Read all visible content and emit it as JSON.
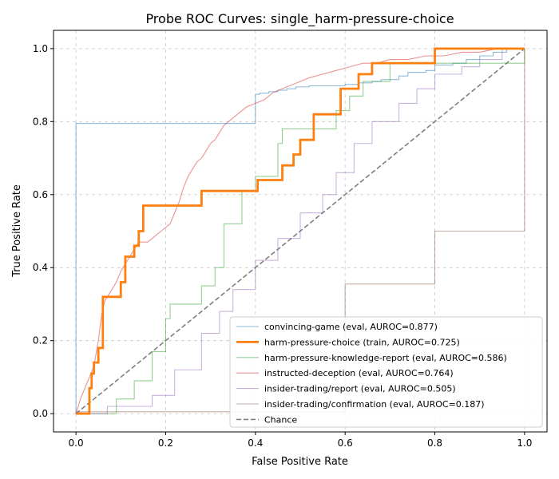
{
  "chart_data": {
    "type": "line",
    "title": "Probe ROC Curves: single_harm-pressure-choice",
    "xlabel": "False Positive Rate",
    "ylabel": "True Positive Rate",
    "xlim": [
      -0.05,
      1.05
    ],
    "ylim": [
      -0.05,
      1.05
    ],
    "xticks": [
      0.0,
      0.2,
      0.4,
      0.6,
      0.8,
      1.0
    ],
    "yticks": [
      0.0,
      0.2,
      0.4,
      0.6,
      0.8,
      1.0
    ],
    "xtick_labels": [
      "0.0",
      "0.2",
      "0.4",
      "0.6",
      "0.8",
      "1.0"
    ],
    "ytick_labels": [
      "0.0",
      "0.2",
      "0.4",
      "0.6",
      "0.8",
      "1.0"
    ],
    "grid": true,
    "legend_position": "lower-right",
    "series": [
      {
        "name": "convincing-game (eval, AUROC=0.877)",
        "color": "#1f77b4",
        "bold": false,
        "x": [
          0,
          0,
          0.4,
          0.4,
          0.41,
          0.41,
          0.43,
          0.43,
          0.45,
          0.45,
          0.47,
          0.47,
          0.49,
          0.49,
          0.52,
          0.52,
          0.6,
          0.6,
          0.63,
          0.63,
          0.66,
          0.66,
          0.68,
          0.68,
          0.72,
          0.72,
          0.74,
          0.74,
          0.78,
          0.78,
          0.8,
          0.8,
          0.84,
          0.84,
          0.87,
          0.87,
          0.9,
          0.9,
          0.93,
          0.93,
          0.96,
          0.96,
          1.0
        ],
        "y": [
          0,
          0.795,
          0.795,
          0.875,
          0.875,
          0.878,
          0.878,
          0.882,
          0.882,
          0.886,
          0.886,
          0.89,
          0.89,
          0.895,
          0.895,
          0.898,
          0.898,
          0.902,
          0.902,
          0.906,
          0.906,
          0.91,
          0.91,
          0.915,
          0.915,
          0.925,
          0.925,
          0.935,
          0.935,
          0.94,
          0.94,
          0.955,
          0.955,
          0.96,
          0.96,
          0.97,
          0.97,
          0.98,
          0.98,
          0.99,
          0.99,
          1.0,
          1.0
        ]
      },
      {
        "name": "harm-pressure-choice (train, AUROC=0.725)",
        "color": "#ff7f0e",
        "bold": true,
        "x": [
          0,
          0.03,
          0.03,
          0.035,
          0.035,
          0.04,
          0.04,
          0.05,
          0.05,
          0.06,
          0.06,
          0.1,
          0.1,
          0.11,
          0.11,
          0.13,
          0.13,
          0.14,
          0.14,
          0.15,
          0.15,
          0.28,
          0.28,
          0.405,
          0.405,
          0.46,
          0.46,
          0.485,
          0.485,
          0.5,
          0.5,
          0.53,
          0.53,
          0.59,
          0.59,
          0.63,
          0.63,
          0.66,
          0.66,
          0.8,
          0.8,
          1.0
        ],
        "y": [
          0,
          0,
          0.07,
          0.07,
          0.11,
          0.11,
          0.14,
          0.14,
          0.18,
          0.18,
          0.32,
          0.32,
          0.36,
          0.36,
          0.43,
          0.43,
          0.46,
          0.46,
          0.5,
          0.5,
          0.57,
          0.57,
          0.61,
          0.61,
          0.64,
          0.64,
          0.68,
          0.68,
          0.71,
          0.71,
          0.75,
          0.75,
          0.82,
          0.82,
          0.89,
          0.89,
          0.93,
          0.93,
          0.96,
          0.96,
          1.0,
          1.0
        ]
      },
      {
        "name": "harm-pressure-knowledge-report (eval, AUROC=0.586)",
        "color": "#2ca02c",
        "bold": false,
        "x": [
          0,
          0.09,
          0.09,
          0.13,
          0.13,
          0.17,
          0.17,
          0.2,
          0.2,
          0.21,
          0.21,
          0.28,
          0.28,
          0.31,
          0.31,
          0.33,
          0.33,
          0.37,
          0.37,
          0.4,
          0.4,
          0.45,
          0.45,
          0.46,
          0.46,
          0.58,
          0.58,
          0.61,
          0.61,
          0.64,
          0.64,
          0.66,
          0.66,
          0.7,
          0.7,
          0.8,
          0.8,
          0.82,
          0.82,
          0.93,
          0.93,
          1.0,
          1.0
        ],
        "y": [
          0,
          0,
          0.04,
          0.04,
          0.09,
          0.09,
          0.17,
          0.17,
          0.26,
          0.26,
          0.3,
          0.3,
          0.35,
          0.35,
          0.4,
          0.4,
          0.52,
          0.52,
          0.61,
          0.61,
          0.65,
          0.65,
          0.74,
          0.74,
          0.78,
          0.78,
          0.83,
          0.83,
          0.87,
          0.87,
          0.91,
          0.91,
          0.91,
          0.91,
          0.96,
          0.96,
          0.96,
          0.96,
          0.96,
          0.96,
          0.96,
          0.96,
          1.0
        ]
      },
      {
        "name": "instructed-deception (eval, AUROC=0.764)",
        "color": "#d62728",
        "bold": false,
        "x": [
          0,
          0.005,
          0.01,
          0.02,
          0.03,
          0.04,
          0.05,
          0.055,
          0.06,
          0.065,
          0.07,
          0.08,
          0.09,
          0.1,
          0.11,
          0.12,
          0.13,
          0.14,
          0.15,
          0.16,
          0.17,
          0.18,
          0.19,
          0.2,
          0.21,
          0.22,
          0.23,
          0.24,
          0.25,
          0.26,
          0.27,
          0.28,
          0.29,
          0.3,
          0.31,
          0.32,
          0.33,
          0.34,
          0.36,
          0.38,
          0.4,
          0.42,
          0.44,
          0.46,
          0.48,
          0.5,
          0.52,
          0.55,
          0.58,
          0.61,
          0.64,
          0.67,
          0.7,
          0.74,
          0.78,
          0.82,
          0.86,
          0.9,
          0.94,
          0.98,
          1.0
        ],
        "y": [
          0,
          0.02,
          0.04,
          0.07,
          0.1,
          0.13,
          0.2,
          0.25,
          0.29,
          0.31,
          0.32,
          0.34,
          0.36,
          0.39,
          0.41,
          0.43,
          0.45,
          0.47,
          0.47,
          0.47,
          0.48,
          0.49,
          0.5,
          0.51,
          0.52,
          0.55,
          0.58,
          0.62,
          0.65,
          0.67,
          0.69,
          0.7,
          0.72,
          0.74,
          0.75,
          0.77,
          0.79,
          0.8,
          0.82,
          0.84,
          0.85,
          0.86,
          0.88,
          0.89,
          0.9,
          0.91,
          0.92,
          0.93,
          0.94,
          0.95,
          0.96,
          0.96,
          0.97,
          0.97,
          0.98,
          0.98,
          0.99,
          0.99,
          1.0,
          1.0,
          1.0
        ]
      },
      {
        "name": "insider-trading/report (eval, AUROC=0.505)",
        "color": "#9467bd",
        "bold": false,
        "x": [
          0,
          0.07,
          0.07,
          0.17,
          0.17,
          0.22,
          0.22,
          0.28,
          0.28,
          0.32,
          0.32,
          0.35,
          0.35,
          0.4,
          0.4,
          0.45,
          0.45,
          0.5,
          0.5,
          0.55,
          0.55,
          0.58,
          0.58,
          0.62,
          0.62,
          0.66,
          0.66,
          0.72,
          0.72,
          0.76,
          0.76,
          0.8,
          0.8,
          0.86,
          0.86,
          0.9,
          0.9,
          0.95,
          0.95,
          1.0
        ],
        "y": [
          0,
          0,
          0.02,
          0.02,
          0.05,
          0.05,
          0.12,
          0.12,
          0.22,
          0.22,
          0.28,
          0.28,
          0.34,
          0.34,
          0.42,
          0.42,
          0.48,
          0.48,
          0.55,
          0.55,
          0.6,
          0.6,
          0.66,
          0.66,
          0.74,
          0.74,
          0.8,
          0.8,
          0.85,
          0.85,
          0.89,
          0.89,
          0.93,
          0.93,
          0.95,
          0.95,
          0.97,
          0.97,
          1.0,
          1.0
        ]
      },
      {
        "name": "insider-trading/confirmation (eval, AUROC=0.187)",
        "color": "#8c564b",
        "bold": false,
        "x": [
          0,
          0.6,
          0.6,
          0.8,
          0.8,
          1.0,
          1.0
        ],
        "y": [
          0.005,
          0.005,
          0.355,
          0.355,
          0.5,
          0.5,
          1.0
        ]
      }
    ],
    "chance": {
      "name": "Chance",
      "color": "#7f7f7f",
      "x": [
        0,
        1
      ],
      "y": [
        0,
        1
      ]
    }
  }
}
